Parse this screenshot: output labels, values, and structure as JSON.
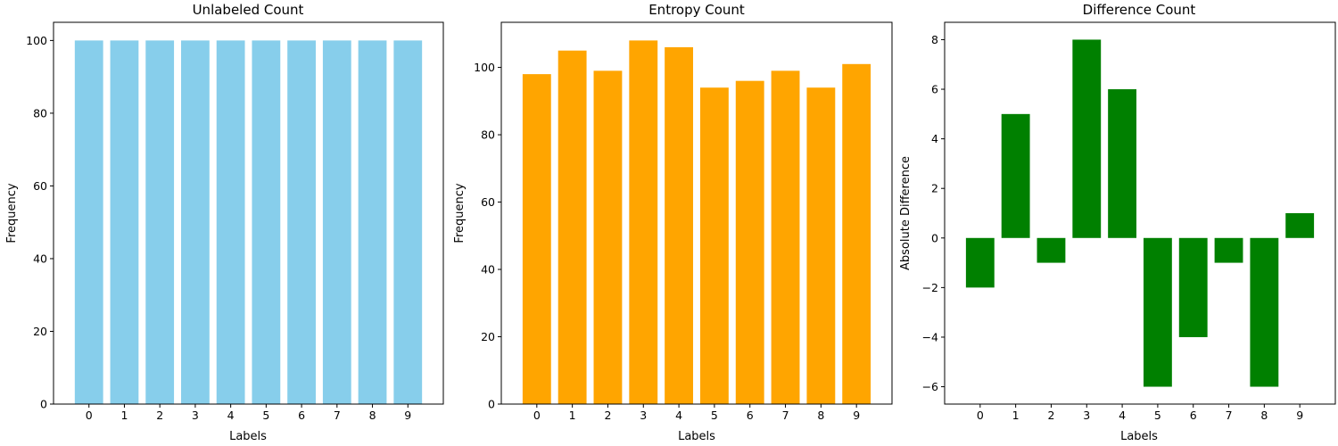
{
  "chart_data": [
    {
      "type": "bar",
      "title": "Unlabeled Count",
      "xlabel": "Labels",
      "ylabel": "Frequency",
      "categories": [
        "0",
        "1",
        "2",
        "3",
        "4",
        "5",
        "6",
        "7",
        "8",
        "9"
      ],
      "values": [
        100,
        100,
        100,
        100,
        100,
        100,
        100,
        100,
        100,
        100
      ],
      "ylim": [
        0,
        105
      ],
      "yticks": [
        0,
        20,
        40,
        60,
        80,
        100
      ],
      "color": "#87ceeb",
      "grid": false
    },
    {
      "type": "bar",
      "title": "Entropy Count",
      "xlabel": "Labels",
      "ylabel": "Frequency",
      "categories": [
        "0",
        "1",
        "2",
        "3",
        "4",
        "5",
        "6",
        "7",
        "8",
        "9"
      ],
      "values": [
        98,
        105,
        99,
        108,
        106,
        94,
        96,
        99,
        94,
        101
      ],
      "ylim": [
        0,
        113.4
      ],
      "yticks": [
        0,
        20,
        40,
        60,
        80,
        100
      ],
      "color": "#ffa500",
      "grid": false
    },
    {
      "type": "bar",
      "title": "Difference Count",
      "xlabel": "Labels",
      "ylabel": "Absolute Difference",
      "categories": [
        "0",
        "1",
        "2",
        "3",
        "4",
        "5",
        "6",
        "7",
        "8",
        "9"
      ],
      "values": [
        -2,
        5,
        -1,
        8,
        6,
        -6,
        -4,
        -1,
        -6,
        1
      ],
      "ylim": [
        -6.7,
        8.7
      ],
      "yticks": [
        -6,
        -4,
        -2,
        0,
        2,
        4,
        6,
        8
      ],
      "color": "#008000",
      "grid": false
    }
  ]
}
